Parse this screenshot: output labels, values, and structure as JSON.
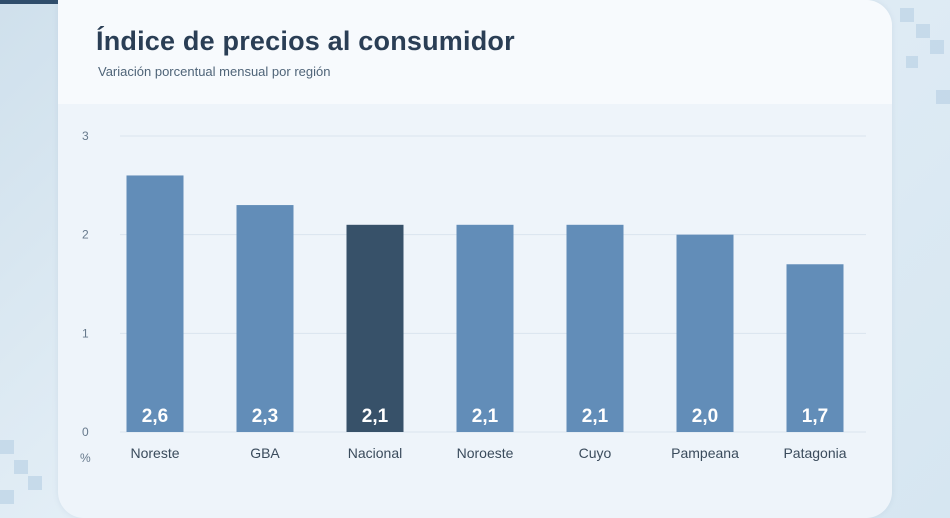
{
  "header": {
    "title": "Índice de precios al consumidor",
    "subtitle": "Variación porcentual mensual por región"
  },
  "colors": {
    "bar": "#628db8",
    "bar_highlight": "#375169",
    "grid": "#d9e4ee"
  },
  "chart_data": {
    "type": "bar",
    "title": "Índice de precios al consumidor",
    "subtitle": "Variación porcentual mensual por región",
    "unit": "%",
    "categories": [
      "Noreste",
      "GBA",
      "Nacional",
      "Noroeste",
      "Cuyo",
      "Pampeana",
      "Patagonia"
    ],
    "values": [
      2.6,
      2.3,
      2.1,
      2.1,
      2.1,
      2.0,
      1.7
    ],
    "value_labels": [
      "2,6",
      "2,3",
      "2,1",
      "2,1",
      "2,1",
      "2,0",
      "1,7"
    ],
    "highlight_category": "Nacional",
    "ylim": [
      0,
      3
    ],
    "yticks": [
      0,
      1,
      2,
      3
    ],
    "ytick_labels": [
      "0",
      "1",
      "2",
      "3"
    ],
    "grid": true
  }
}
